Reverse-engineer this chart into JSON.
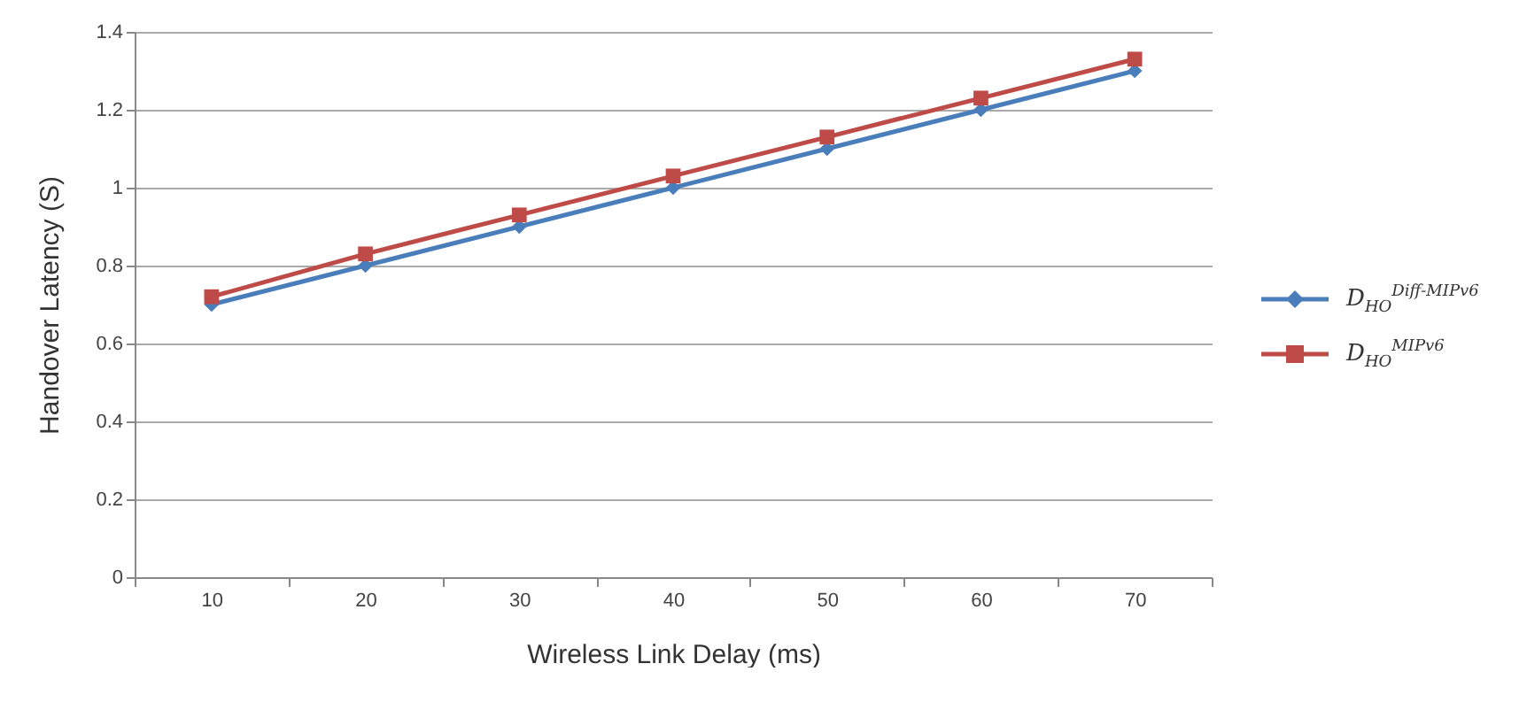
{
  "chart_data": {
    "type": "line",
    "xlabel": "Wireless Link Delay (ms)",
    "ylabel": "Handover Latency (S)",
    "categories": [
      "10",
      "20",
      "30",
      "40",
      "50",
      "60",
      "70"
    ],
    "series": [
      {
        "name": "D$_{HO}$$^{Diff-MIPv6}$",
        "color": "#4a7ebb",
        "marker": "diamond",
        "values": [
          0.7,
          0.8,
          0.9,
          1.0,
          1.1,
          1.2,
          1.3
        ]
      },
      {
        "name": "D$_{HO}$$^{MIPv6}$",
        "color": "#be4b48",
        "marker": "square",
        "values": [
          0.72,
          0.83,
          0.93,
          1.03,
          1.13,
          1.23,
          1.33
        ]
      }
    ],
    "ylim": [
      0,
      1.4
    ],
    "yticks": [
      0,
      0.2,
      0.4,
      0.6,
      0.8,
      1,
      1.2,
      1.4
    ],
    "grid": "y",
    "legend": "right",
    "line_style": "solid"
  }
}
